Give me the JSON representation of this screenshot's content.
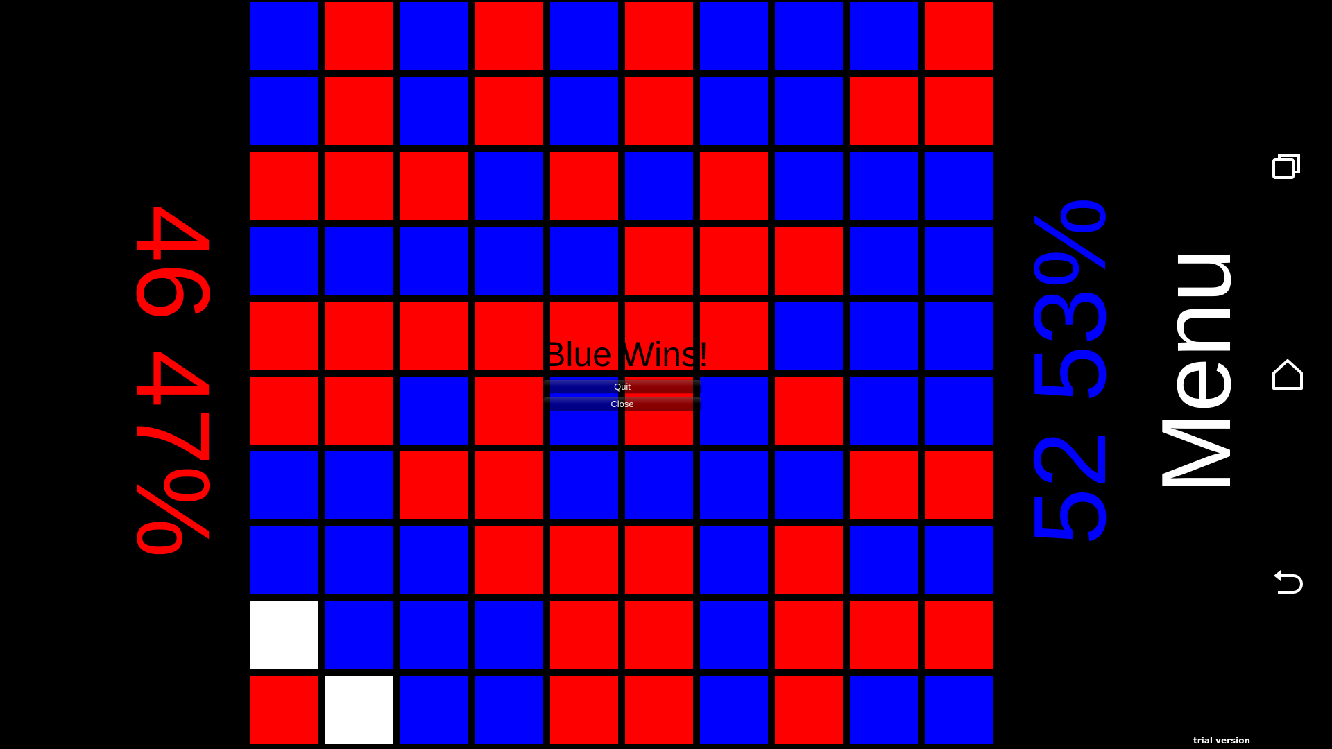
{
  "board": {
    "colors": {
      "R": "#ff0000",
      "B": "#0000ff",
      "W": "#ffffff"
    },
    "rows": [
      "BRBRBRBBBR",
      "BRBRBRBBRR",
      "RRRBRBRBBB",
      "BBBBBRRRBB",
      "RRRRRRRBBB",
      "RRBRBRBRBB",
      "BBRRBBBBRR",
      "BBBRRRBRBB",
      "WBBBRRBRRR",
      "RWBBRRBRBB"
    ]
  },
  "red_player": {
    "count": "46",
    "percent": "47%",
    "color": "#ff0000"
  },
  "blue_player": {
    "count": "52",
    "percent": "53%",
    "color": "#0000ff"
  },
  "menu_label": "Menu",
  "dialog": {
    "title": "Blue Wins!",
    "quit_label": "Quit",
    "close_label": "Close"
  },
  "nav_bar": {
    "icons": [
      "recent-apps-icon",
      "home-icon",
      "back-icon"
    ]
  },
  "watermark": "trial version"
}
